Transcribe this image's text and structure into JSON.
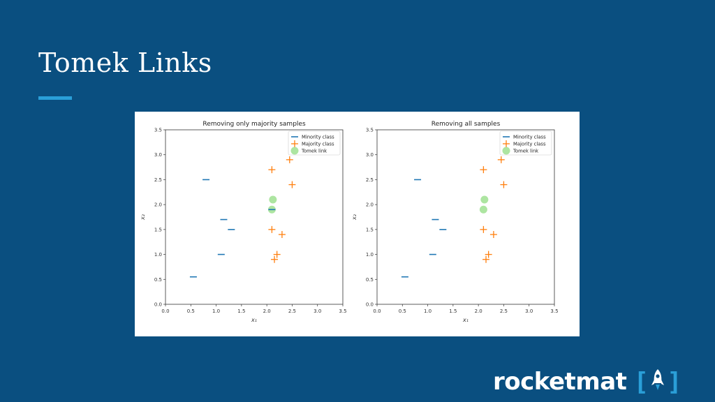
{
  "slide": {
    "title": "Tomek Links",
    "accent_color": "#2a9fd8",
    "background_color": "#0a4f80"
  },
  "logo": {
    "text": "rocketmat",
    "bracket_left": "[",
    "bracket_right": "]",
    "icon": "rocket-icon"
  },
  "chart_data": [
    {
      "type": "scatter",
      "title": "Removing only majority samples",
      "xlabel": "x₁",
      "ylabel": "x₂",
      "xlim": [
        0.0,
        3.5
      ],
      "ylim": [
        0.0,
        3.5
      ],
      "xticks": [
        "0.0",
        "0.5",
        "1.0",
        "1.5",
        "2.0",
        "2.5",
        "3.0",
        "3.5"
      ],
      "yticks": [
        "0.0",
        "0.5",
        "1.0",
        "1.5",
        "2.0",
        "2.5",
        "3.0",
        "3.5"
      ],
      "legend_position": "top-right",
      "series": [
        {
          "name": "Minority class",
          "marker": "hline",
          "color": "#1f77b4",
          "points": [
            [
              0.8,
              2.5
            ],
            [
              1.15,
              1.7
            ],
            [
              1.3,
              1.5
            ],
            [
              1.1,
              1.0
            ],
            [
              0.55,
              0.55
            ],
            [
              2.1,
              1.9
            ]
          ]
        },
        {
          "name": "Majority class",
          "marker": "plus",
          "color": "#ff7f0e",
          "points": [
            [
              2.1,
              2.7
            ],
            [
              2.45,
              2.9
            ],
            [
              2.5,
              2.4
            ],
            [
              2.1,
              1.5
            ],
            [
              2.3,
              1.4
            ],
            [
              2.2,
              1.0
            ],
            [
              2.15,
              0.9
            ]
          ]
        },
        {
          "name": "Tomek link",
          "marker": "circle",
          "color": "#98df8a",
          "points": [
            [
              2.12,
              2.1
            ],
            [
              2.1,
              1.9
            ]
          ]
        }
      ]
    },
    {
      "type": "scatter",
      "title": "Removing all samples",
      "xlabel": "x₁",
      "ylabel": "x₂",
      "xlim": [
        0.0,
        3.5
      ],
      "ylim": [
        0.0,
        3.5
      ],
      "xticks": [
        "0.0",
        "0.5",
        "1.0",
        "1.5",
        "2.0",
        "2.5",
        "3.0",
        "3.5"
      ],
      "yticks": [
        "0.0",
        "0.5",
        "1.0",
        "1.5",
        "2.0",
        "2.5",
        "3.0",
        "3.5"
      ],
      "legend_position": "top-right",
      "series": [
        {
          "name": "Minority class",
          "marker": "hline",
          "color": "#1f77b4",
          "points": [
            [
              0.8,
              2.5
            ],
            [
              1.15,
              1.7
            ],
            [
              1.3,
              1.5
            ],
            [
              1.1,
              1.0
            ],
            [
              0.55,
              0.55
            ]
          ]
        },
        {
          "name": "Majority class",
          "marker": "plus",
          "color": "#ff7f0e",
          "points": [
            [
              2.1,
              2.7
            ],
            [
              2.45,
              2.9
            ],
            [
              2.5,
              2.4
            ],
            [
              2.1,
              1.5
            ],
            [
              2.3,
              1.4
            ],
            [
              2.2,
              1.0
            ],
            [
              2.15,
              0.9
            ]
          ]
        },
        {
          "name": "Tomek link",
          "marker": "circle",
          "color": "#98df8a",
          "points": [
            [
              2.12,
              2.1
            ],
            [
              2.1,
              1.9
            ]
          ]
        }
      ]
    }
  ]
}
